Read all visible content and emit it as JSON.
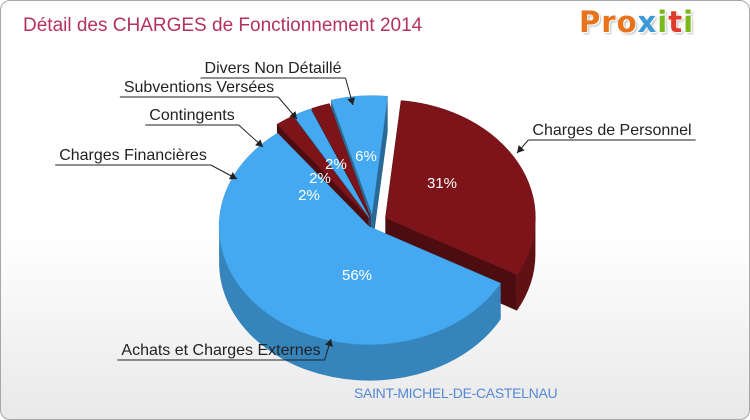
{
  "title": "Détail des CHARGES de Fonctionnement 2014",
  "logo": {
    "letters": [
      "P",
      "r",
      "o",
      "x",
      "i",
      "t",
      "i"
    ],
    "colors": [
      "#e8731c",
      "#e8731c",
      "#e8731c",
      "#3b9bd8",
      "#7ab81c",
      "#e03a2a",
      "#7ab81c"
    ]
  },
  "commune": "SAINT-MICHEL-DE-CASTELNAU",
  "colors": {
    "red": "#7c1419",
    "blue": "#44a9f0",
    "title": "#b5325c"
  },
  "chart_data": {
    "type": "pie",
    "title": "Détail des CHARGES de Fonctionnement 2014",
    "units": "%",
    "slices": [
      {
        "label": "Charges de Personnel",
        "value": 31,
        "pct_label": "31%",
        "color": "red"
      },
      {
        "label": "Achats et Charges Externes",
        "value": 56,
        "pct_label": "56%",
        "color": "blue"
      },
      {
        "label": "Charges Financières",
        "value": 2,
        "pct_label": "2%",
        "color": "red"
      },
      {
        "label": "Contingents",
        "value": 2,
        "pct_label": "2%",
        "color": "blue"
      },
      {
        "label": "Subventions Versées",
        "value": 2,
        "pct_label": "2%",
        "color": "red"
      },
      {
        "label": "Divers Non Détaillé",
        "value": 6,
        "pct_label": "6%",
        "color": "blue"
      }
    ]
  }
}
